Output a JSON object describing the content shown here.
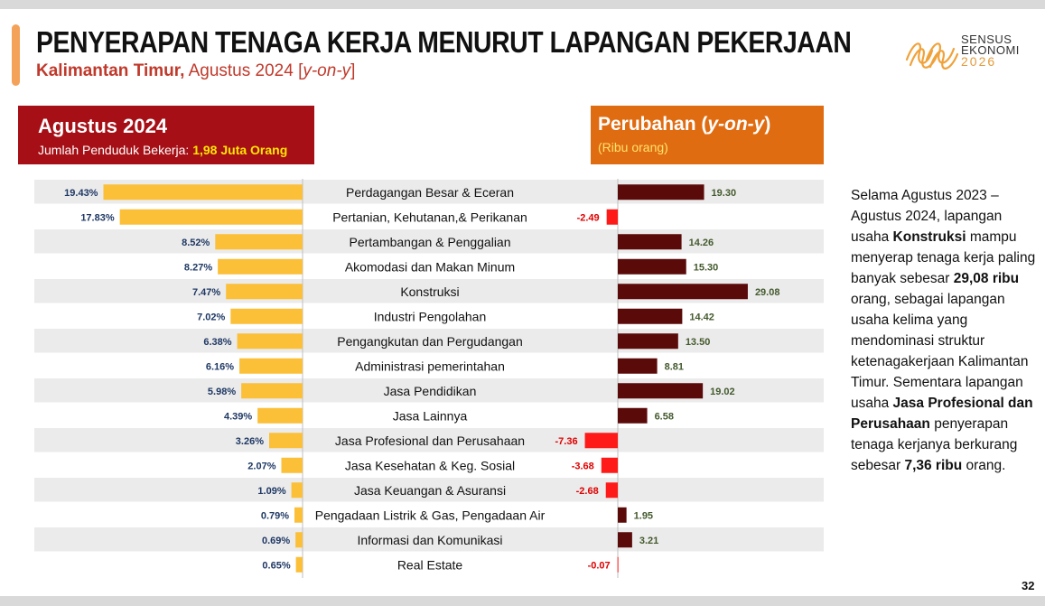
{
  "title": "PENYERAPAN TENAGA KERJA MENURUT LAPANGAN PEKERJAAN",
  "subtitle_bold": "Kalimantan Timur,",
  "subtitle_rest": " Agustus 2024 [",
  "subtitle_italic": "y-on-y",
  "subtitle_end": "]",
  "logo": {
    "line1": "SENSUS",
    "line2": "EKONOMI",
    "line3": "2026"
  },
  "left_header": {
    "title": "Agustus 2024",
    "label": "Jumlah Penduduk Bekerja: ",
    "value": "1,98 Juta Orang"
  },
  "right_header": {
    "title_plain": "Perubahan (",
    "title_italic": "y-on-y",
    "title_end": ")",
    "unit": "(Ribu orang)"
  },
  "colors": {
    "share_bar": "#fbbf38",
    "positive_bar": "#5b0a0a",
    "negative_bar": "#ff1a1a",
    "stripe": "#ebebeb",
    "negative_label": "#e00000",
    "positive_label": "#445a2e",
    "share_label": "#1f3864"
  },
  "chart_data": {
    "type": "bar",
    "categories": [
      "Perdagangan Besar & Eceran",
      "Pertanian, Kehutanan,& Perikanan",
      "Pertambangan & Penggalian",
      "Akomodasi dan Makan Minum",
      "Konstruksi",
      "Industri Pengolahan",
      "Pengangkutan dan Pergudangan",
      "Administrasi pemerintahan",
      "Jasa Pendidikan",
      "Jasa Lainnya",
      "Jasa Profesional dan Perusahaan",
      "Jasa Kesehatan & Keg. Sosial",
      "Jasa Keuangan & Asuransi",
      "Pengadaan Listrik & Gas, Pengadaan Air",
      "Informasi dan Komunikasi",
      "Real Estate"
    ],
    "series": [
      {
        "values": [
          19.43,
          17.83,
          8.52,
          8.27,
          7.47,
          7.02,
          6.38,
          6.16,
          5.98,
          4.39,
          3.26,
          2.07,
          1.09,
          0.79,
          0.69,
          0.65
        ],
        "labels": [
          "19.43%",
          "17.83%",
          "8.52%",
          "8.27%",
          "7.47%",
          "7.02%",
          "6.38%",
          "6.16%",
          "5.98%",
          "4.39%",
          "3.26%",
          "2.07%",
          "1.09%",
          "0.79%",
          "0.69%",
          "0.65%"
        ]
      },
      {
        "values": [
          19.3,
          -2.49,
          14.26,
          15.3,
          29.08,
          14.42,
          13.5,
          8.81,
          19.02,
          6.58,
          -7.36,
          -3.68,
          -2.68,
          1.95,
          3.21,
          -0.07
        ],
        "labels": [
          "19.30",
          "-2.49",
          "14.26",
          "15.30",
          "29.08",
          "14.42",
          "13.50",
          "8.81",
          "19.02",
          "6.58",
          "-7.36",
          "-3.68",
          "-2.68",
          "1.95",
          "3.21",
          "-0.07"
        ]
      }
    ]
  },
  "side_text": [
    {
      "t": "Selama Agustus 2023 – Agustus 2024, lapangan usaha ",
      "b": false
    },
    {
      "t": "Konstruksi",
      "b": true
    },
    {
      "t": " mampu menyerap tenaga kerja paling banyak sebesar ",
      "b": false
    },
    {
      "t": "29,08 ribu",
      "b": true
    },
    {
      "t": " orang, sebagai lapangan usaha kelima yang mendominasi struktur ketenagakerjaan Kalimantan Timur. Sementara lapangan usaha ",
      "b": false
    },
    {
      "t": "Jasa Profesional dan Perusahaan",
      "b": true
    },
    {
      "t": " penyerapan tenaga kerjanya berkurang sebesar ",
      "b": false
    },
    {
      "t": "7,36 ribu",
      "b": true
    },
    {
      "t": " orang.",
      "b": false
    }
  ],
  "page_number": "32"
}
